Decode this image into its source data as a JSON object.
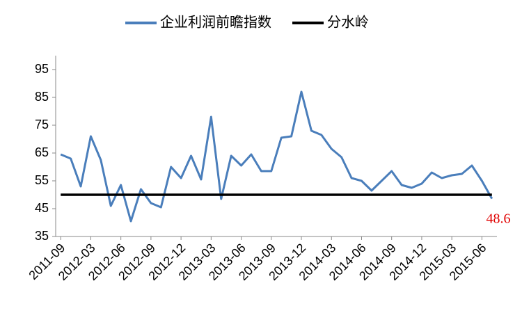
{
  "chart_data": {
    "type": "line",
    "categories": [
      "2011-09",
      null,
      null,
      "2012-03",
      null,
      null,
      "2012-06",
      null,
      null,
      "2012-09",
      null,
      null,
      "2012-12",
      null,
      null,
      "2013-03",
      null,
      null,
      "2013-06",
      null,
      null,
      "2013-09",
      null,
      null,
      "2013-12",
      null,
      null,
      "2014-03",
      null,
      null,
      "2014-06",
      null,
      null,
      "2014-09",
      null,
      null,
      "2014-12",
      null,
      null,
      "2015-03",
      null,
      null,
      "2015-06",
      null
    ],
    "series": [
      {
        "name": "企业利润前瞻指数",
        "color": "#4a7ebb",
        "values": [
          64.5,
          63,
          53,
          71,
          62.5,
          46,
          53.5,
          40.5,
          52,
          47,
          45.5,
          60,
          56,
          64,
          55.5,
          78,
          48.5,
          64,
          60.5,
          64.5,
          58.5,
          58.5,
          70.5,
          71,
          87,
          73,
          71.5,
          66.5,
          63.5,
          56,
          55,
          51.5,
          55,
          58.5,
          53.5,
          52.5,
          54,
          58,
          56,
          57,
          57.5,
          60.5,
          55,
          48.6
        ]
      },
      {
        "name": "分水岭",
        "color": "#000000",
        "values": [
          50,
          50,
          50,
          50,
          50,
          50,
          50,
          50,
          50,
          50,
          50,
          50,
          50,
          50,
          50,
          50,
          50,
          50,
          50,
          50,
          50,
          50,
          50,
          50,
          50,
          50,
          50,
          50,
          50,
          50,
          50,
          50,
          50,
          50,
          50,
          50,
          50,
          50,
          50,
          50,
          50,
          50,
          50,
          50
        ]
      }
    ],
    "annotation": "48.6",
    "ylim": [
      35,
      95
    ],
    "yticks": [
      35,
      45,
      55,
      65,
      75,
      85,
      95
    ]
  }
}
